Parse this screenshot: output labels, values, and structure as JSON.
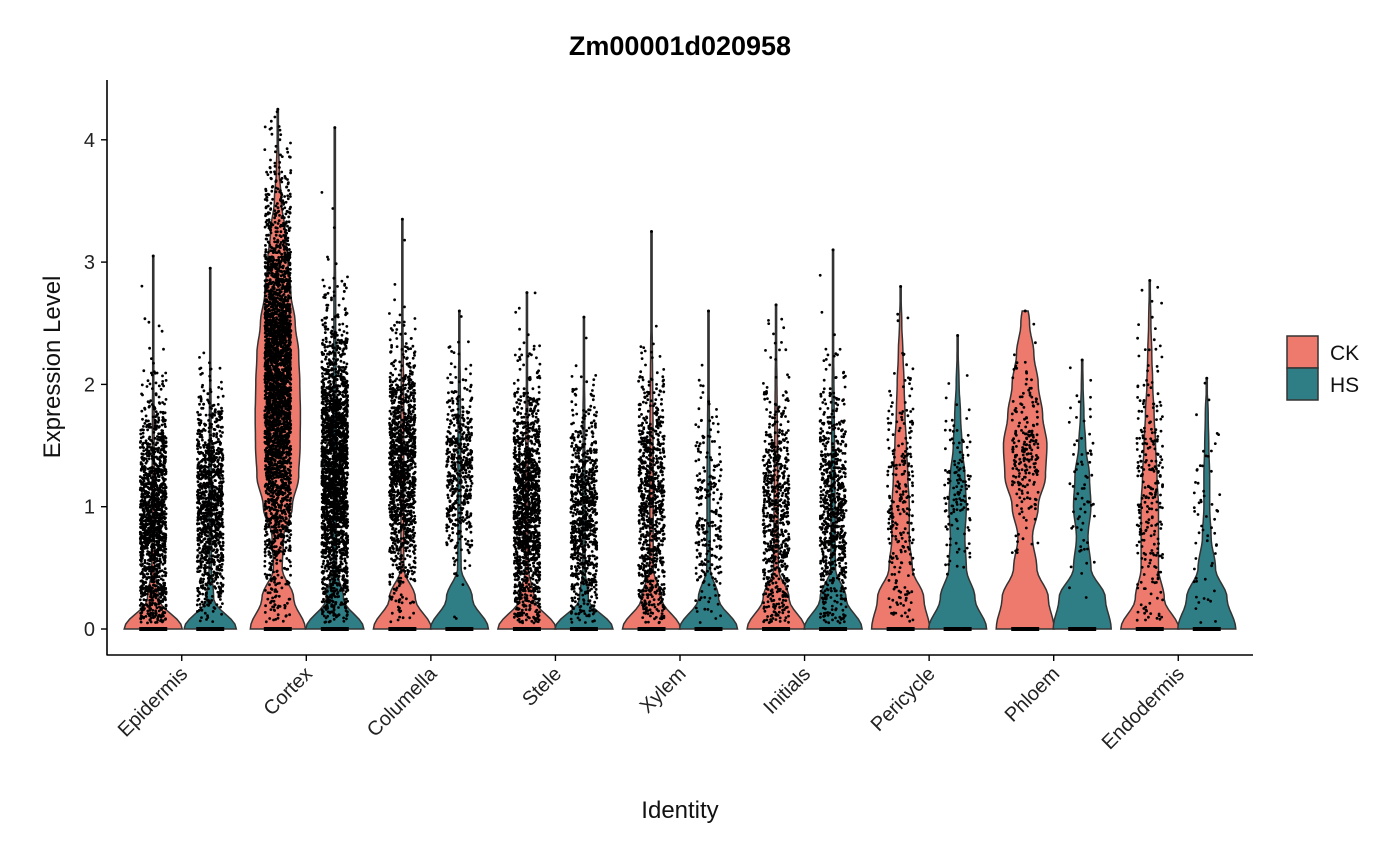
{
  "chart_data": {
    "type": "violin",
    "title": "Zm00001d020958",
    "xlabel": "Identity",
    "ylabel": "Expression Level",
    "ylim": [
      -0.2,
      4.5
    ],
    "yticks": [
      0,
      1,
      2,
      3,
      4
    ],
    "grid": false,
    "legend_position": "right",
    "legend": [
      {
        "name": "CK",
        "color": "#EE7A6D"
      },
      {
        "name": "HS",
        "color": "#2F7E86"
      }
    ],
    "density_step": 0.25,
    "categories": [
      "Epidermis",
      "Cortex",
      "Columella",
      "Stele",
      "Xylem",
      "Initials",
      "Pericycle",
      "Phloem",
      "Endodermis"
    ],
    "groups": [
      {
        "category": "Epidermis",
        "CK": {
          "max": 3.05,
          "density": [
            1,
            0.2,
            0.05,
            0.04,
            0.04,
            0.04,
            0.03,
            0.03,
            0.02,
            0.02,
            0.01,
            0.01,
            0.01
          ],
          "points": {
            "mean": 0.9,
            "sd": 0.5,
            "n": 1400
          }
        },
        "HS": {
          "max": 2.95,
          "density": [
            0.9,
            0.12,
            0.04,
            0.04,
            0.04,
            0.04,
            0.03,
            0.03,
            0.02,
            0.02,
            0.01,
            0.01
          ],
          "points": {
            "mean": 1.0,
            "sd": 0.45,
            "n": 1100
          }
        }
      },
      {
        "category": "Cortex",
        "CK": {
          "max": 4.25,
          "density": [
            0.95,
            0.55,
            0.15,
            0.2,
            0.5,
            0.72,
            0.77,
            0.78,
            0.76,
            0.72,
            0.6,
            0.45,
            0.35,
            0.25,
            0.12,
            0.05,
            0.02,
            0.01
          ],
          "points": {
            "mean": 2.0,
            "sd": 0.75,
            "n": 3000
          }
        },
        "HS": {
          "max": 4.1,
          "density": [
            1,
            0.3,
            0.06,
            0.05,
            0.05,
            0.05,
            0.05,
            0.05,
            0.04,
            0.04,
            0.03,
            0.03,
            0.02,
            0.02,
            0.01,
            0.01,
            0.01
          ],
          "points": {
            "mean": 1.3,
            "sd": 0.6,
            "n": 2200
          }
        }
      },
      {
        "category": "Columella",
        "CK": {
          "max": 3.35,
          "density": [
            1,
            0.45,
            0.05,
            0.05,
            0.05,
            0.05,
            0.05,
            0.05,
            0.04,
            0.03,
            0.02,
            0.02,
            0.01,
            0.01
          ],
          "points": {
            "mean": 1.3,
            "sd": 0.5,
            "n": 1200
          }
        },
        "HS": {
          "max": 2.6,
          "density": [
            1,
            0.45,
            0.06,
            0.05,
            0.05,
            0.05,
            0.05,
            0.04,
            0.03,
            0.02,
            0.01
          ],
          "points": {
            "mean": 1.3,
            "sd": 0.4,
            "n": 500
          }
        }
      },
      {
        "category": "Stele",
        "CK": {
          "max": 2.75,
          "density": [
            1,
            0.25,
            0.05,
            0.04,
            0.04,
            0.04,
            0.04,
            0.03,
            0.02,
            0.02,
            0.01,
            0.01
          ],
          "points": {
            "mean": 1.0,
            "sd": 0.5,
            "n": 1300
          }
        },
        "HS": {
          "max": 2.55,
          "density": [
            1,
            0.15,
            0.04,
            0.04,
            0.04,
            0.04,
            0.03,
            0.03,
            0.02,
            0.01,
            0.01
          ],
          "points": {
            "mean": 0.9,
            "sd": 0.45,
            "n": 800
          }
        }
      },
      {
        "category": "Xylem",
        "CK": {
          "max": 3.25,
          "density": [
            1,
            0.35,
            0.06,
            0.06,
            0.06,
            0.06,
            0.05,
            0.05,
            0.04,
            0.03,
            0.02,
            0.01,
            0.01,
            0.01
          ],
          "points": {
            "mean": 1.0,
            "sd": 0.55,
            "n": 800
          }
        },
        "HS": {
          "max": 2.6,
          "density": [
            1,
            0.35,
            0.06,
            0.06,
            0.05,
            0.05,
            0.04,
            0.03,
            0.02,
            0.01,
            0.01
          ],
          "points": {
            "mean": 0.9,
            "sd": 0.45,
            "n": 250
          }
        }
      },
      {
        "category": "Initials",
        "CK": {
          "max": 2.65,
          "density": [
            1,
            0.45,
            0.08,
            0.07,
            0.07,
            0.06,
            0.05,
            0.04,
            0.03,
            0.02,
            0.01
          ],
          "points": {
            "mean": 0.9,
            "sd": 0.55,
            "n": 650
          }
        },
        "HS": {
          "max": 3.1,
          "density": [
            1,
            0.45,
            0.08,
            0.07,
            0.07,
            0.06,
            0.05,
            0.04,
            0.03,
            0.02,
            0.01,
            0.01,
            0.01
          ],
          "points": {
            "mean": 1.0,
            "sd": 0.5,
            "n": 750
          }
        }
      },
      {
        "category": "Pericycle",
        "CK": {
          "max": 2.8,
          "density": [
            1,
            0.8,
            0.4,
            0.3,
            0.3,
            0.25,
            0.2,
            0.15,
            0.12,
            0.08,
            0.04,
            0.01
          ],
          "points": {
            "mean": 1.1,
            "sd": 0.55,
            "n": 260
          }
        },
        "HS": {
          "max": 2.4,
          "density": [
            1,
            0.6,
            0.3,
            0.25,
            0.3,
            0.25,
            0.15,
            0.1,
            0.05,
            0.02
          ],
          "points": {
            "mean": 1.1,
            "sd": 0.4,
            "n": 130
          }
        }
      },
      {
        "category": "Phloem",
        "CK": {
          "max": 2.6,
          "density": [
            1,
            0.8,
            0.4,
            0.25,
            0.45,
            0.7,
            0.75,
            0.6,
            0.45,
            0.3,
            0.15
          ],
          "points": {
            "mean": 1.45,
            "sd": 0.35,
            "n": 220
          }
        },
        "HS": {
          "max": 2.2,
          "density": [
            1,
            0.8,
            0.3,
            0.2,
            0.3,
            0.25,
            0.12,
            0.06,
            0.03
          ],
          "points": {
            "mean": 1.1,
            "sd": 0.4,
            "n": 70
          }
        }
      },
      {
        "category": "Endodermis",
        "CK": {
          "max": 2.85,
          "density": [
            1,
            0.5,
            0.3,
            0.3,
            0.3,
            0.25,
            0.2,
            0.15,
            0.1,
            0.07,
            0.04,
            0.02
          ],
          "points": {
            "mean": 1.1,
            "sd": 0.6,
            "n": 260
          }
        },
        "HS": {
          "max": 2.05,
          "density": [
            1,
            0.7,
            0.3,
            0.15,
            0.1,
            0.1,
            0.07,
            0.05,
            0.01
          ],
          "points": {
            "mean": 0.9,
            "sd": 0.5,
            "n": 60
          }
        }
      }
    ]
  }
}
